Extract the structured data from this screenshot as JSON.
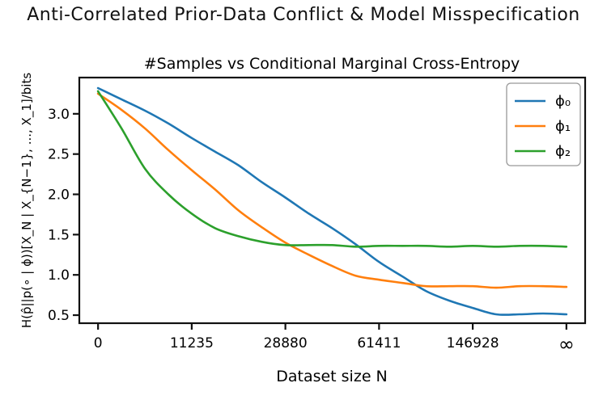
{
  "figure": {
    "suptitle": "Anti-Correlated Prior-Data Conflict & Model Misspecification"
  },
  "chart_data": {
    "type": "line",
    "title": "#Samples vs Conditional Marginal Cross-Entropy",
    "xlabel": "Dataset size N",
    "ylabel": "H(p̂||p(∘ | ϕ))[X_N | X_{N−1}, ..., X_1]/bits",
    "x_tick_labels": [
      "0",
      "11235",
      "28880",
      "61411",
      "146928",
      "∞"
    ],
    "x_tick_positions": [
      0,
      1,
      2,
      3,
      4,
      5
    ],
    "y_ticks": [
      0.5,
      1.0,
      1.5,
      2.0,
      2.5,
      3.0
    ],
    "y_tick_labels": [
      "0.5",
      "1.0",
      "1.5",
      "2.0",
      "2.5",
      "3.0"
    ],
    "xlim": [
      -0.2,
      5.2
    ],
    "ylim": [
      0.4,
      3.45
    ],
    "grid": false,
    "legend_position": "top-right",
    "x": [
      0,
      0.25,
      0.5,
      0.75,
      1.0,
      1.25,
      1.5,
      1.75,
      2.0,
      2.25,
      2.5,
      2.75,
      3.0,
      3.25,
      3.5,
      3.75,
      4.0,
      4.25,
      4.5,
      4.75,
      5.0
    ],
    "series": [
      {
        "name": "ϕ₀",
        "color": "#1f77b4",
        "values": [
          3.32,
          3.18,
          3.04,
          2.88,
          2.7,
          2.53,
          2.36,
          2.15,
          1.96,
          1.76,
          1.58,
          1.38,
          1.16,
          0.98,
          0.8,
          0.68,
          0.59,
          0.51,
          0.51,
          0.52,
          0.51
        ]
      },
      {
        "name": "ϕ₁",
        "color": "#ff7f0e",
        "values": [
          3.25,
          3.05,
          2.82,
          2.55,
          2.3,
          2.06,
          1.8,
          1.59,
          1.4,
          1.25,
          1.11,
          0.99,
          0.94,
          0.9,
          0.86,
          0.86,
          0.86,
          0.84,
          0.86,
          0.86,
          0.85
        ]
      },
      {
        "name": "ϕ₂",
        "color": "#2ca02c",
        "values": [
          3.28,
          2.82,
          2.32,
          2.0,
          1.76,
          1.58,
          1.48,
          1.41,
          1.37,
          1.37,
          1.37,
          1.35,
          1.36,
          1.36,
          1.36,
          1.35,
          1.36,
          1.35,
          1.36,
          1.36,
          1.35
        ]
      }
    ]
  }
}
